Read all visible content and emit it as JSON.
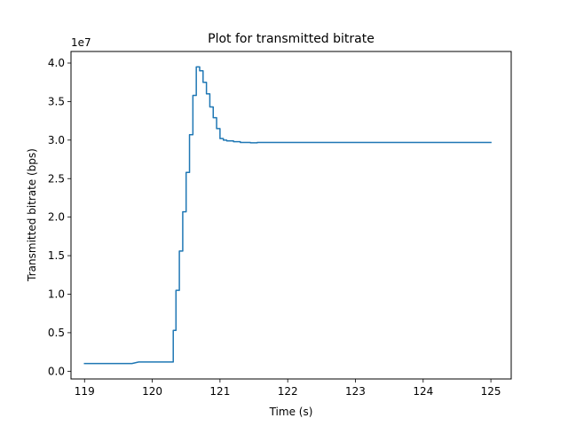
{
  "chart_data": {
    "type": "line",
    "title": "Plot for transmitted bitrate",
    "xlabel": "Time (s)",
    "ylabel": "Transmitted bitrate (bps)",
    "y_offset_text": "1e7",
    "xlim": [
      118.8,
      125.3
    ],
    "ylim": [
      -0.1,
      4.15
    ],
    "x_ticks": [
      119,
      120,
      121,
      122,
      123,
      124,
      125
    ],
    "x_tick_labels": [
      "119",
      "120",
      "121",
      "122",
      "123",
      "124",
      "125"
    ],
    "y_ticks": [
      0.0,
      0.5,
      1.0,
      1.5,
      2.0,
      2.5,
      3.0,
      3.5,
      4.0
    ],
    "y_tick_labels": [
      "0.0",
      "0.5",
      "1.0",
      "1.5",
      "2.0",
      "2.5",
      "3.0",
      "3.5",
      "4.0"
    ],
    "grid": false,
    "line_color": "#1f77b4",
    "series": [
      {
        "x": [
          119.0,
          119.7,
          119.75,
          119.8,
          120.31,
          120.31,
          120.35,
          120.35,
          120.4,
          120.4,
          120.45,
          120.45,
          120.5,
          120.5,
          120.55,
          120.55,
          120.6,
          120.6,
          120.65,
          120.65,
          120.7,
          120.7,
          120.75,
          120.75,
          120.8,
          120.8,
          120.85,
          120.85,
          120.9,
          120.9,
          120.95,
          120.95,
          121.0,
          121.0,
          121.05,
          121.05,
          121.1,
          121.1,
          121.2,
          121.2,
          121.3,
          121.3,
          121.45,
          121.45,
          121.55,
          121.55,
          121.6,
          121.6,
          125.0
        ],
        "y": [
          0.1,
          0.1,
          0.11,
          0.12,
          0.12,
          0.53,
          0.53,
          1.05,
          1.05,
          1.56,
          1.56,
          2.07,
          2.07,
          2.58,
          2.58,
          3.07,
          3.07,
          3.58,
          3.58,
          3.95,
          3.95,
          3.9,
          3.9,
          3.75,
          3.75,
          3.6,
          3.6,
          3.43,
          3.43,
          3.29,
          3.29,
          3.15,
          3.15,
          3.02,
          3.02,
          3.0,
          3.0,
          2.99,
          2.99,
          2.98,
          2.98,
          2.97,
          2.97,
          2.965,
          2.965,
          2.97,
          2.97,
          2.97,
          2.97
        ]
      }
    ]
  }
}
